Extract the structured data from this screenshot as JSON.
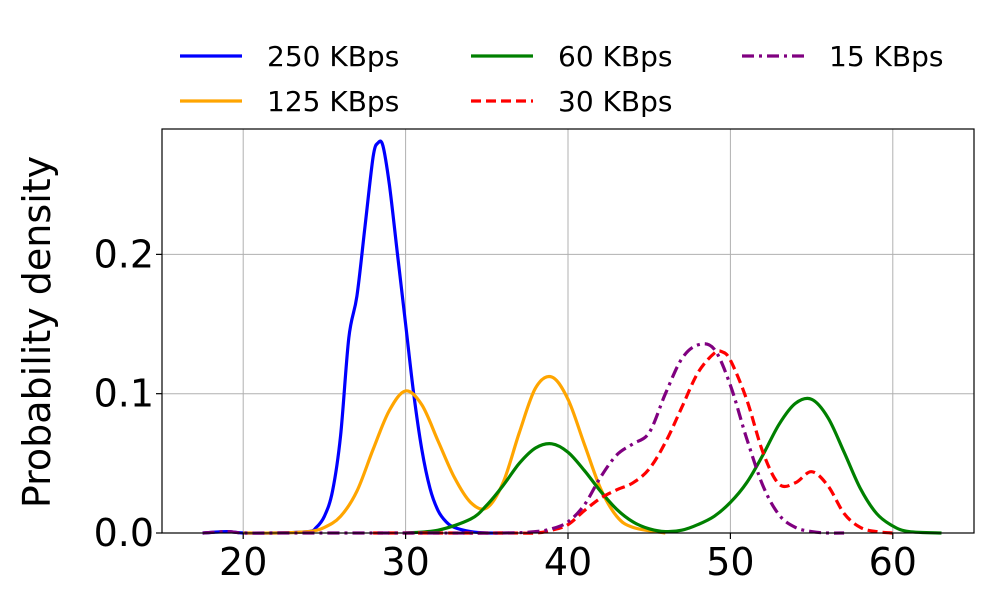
{
  "chart_data": {
    "type": "line",
    "xlabel": "",
    "ylabel": "Probability density",
    "xlim": [
      15,
      65
    ],
    "ylim": [
      0,
      0.29
    ],
    "xticks": [
      20,
      30,
      40,
      50,
      60
    ],
    "yticks": [
      0.0,
      0.1,
      0.2
    ],
    "ytick_labels": [
      "0.0",
      "0.1",
      "0.2"
    ],
    "grid": true,
    "legend_placement": "top, outside plot, 3 columns",
    "series": [
      {
        "name": "250 KBps",
        "color": "#0000ff",
        "dash": "solid",
        "x": [
          17.5,
          19,
          20,
          22,
          24,
          24.5,
          25,
          25.5,
          26,
          26.5,
          27,
          27.5,
          28,
          28.3,
          28.6,
          29,
          29.5,
          30,
          30.5,
          31,
          31.5,
          32,
          32.5,
          33,
          34,
          35,
          36
        ],
        "y": [
          0.0,
          0.001,
          0.0,
          0.0,
          0.001,
          0.004,
          0.012,
          0.03,
          0.07,
          0.14,
          0.17,
          0.22,
          0.27,
          0.28,
          0.278,
          0.25,
          0.2,
          0.15,
          0.1,
          0.06,
          0.032,
          0.016,
          0.008,
          0.004,
          0.001,
          0.0,
          0.0
        ]
      },
      {
        "name": "125 KBps",
        "color": "#ffa500",
        "dash": "solid",
        "x": [
          20,
          22,
          24,
          25,
          26,
          27,
          28,
          29,
          30,
          31,
          32,
          33,
          34,
          35,
          36,
          37,
          38,
          39,
          40,
          41,
          42,
          43,
          44,
          46
        ],
        "y": [
          0.0,
          0.0,
          0.001,
          0.004,
          0.012,
          0.03,
          0.06,
          0.088,
          0.102,
          0.092,
          0.066,
          0.04,
          0.022,
          0.018,
          0.036,
          0.072,
          0.104,
          0.112,
          0.096,
          0.064,
          0.032,
          0.012,
          0.004,
          0.0
        ]
      },
      {
        "name": "60 KBps",
        "color": "#008000",
        "dash": "solid",
        "x": [
          30,
          32,
          34,
          35,
          36,
          37,
          38,
          39,
          40,
          41,
          42,
          43,
          44,
          45,
          46,
          47,
          48,
          49,
          50,
          51,
          52,
          53,
          54,
          55,
          56,
          57,
          58,
          59,
          60,
          61,
          63
        ],
        "y": [
          0.0,
          0.002,
          0.01,
          0.02,
          0.034,
          0.05,
          0.061,
          0.064,
          0.058,
          0.045,
          0.03,
          0.017,
          0.008,
          0.003,
          0.001,
          0.002,
          0.006,
          0.012,
          0.022,
          0.036,
          0.056,
          0.078,
          0.093,
          0.096,
          0.083,
          0.058,
          0.032,
          0.014,
          0.005,
          0.001,
          0.0
        ]
      },
      {
        "name": "30 KBps",
        "color": "#ff0000",
        "dash": "dashed",
        "x": [
          28,
          36,
          38,
          39,
          40,
          41,
          42,
          43,
          44,
          45,
          46,
          47,
          48,
          49,
          49.5,
          50,
          51,
          52,
          53,
          54,
          55,
          56,
          57,
          58,
          59,
          60
        ],
        "y": [
          0.0,
          0.0,
          0.0,
          0.002,
          0.006,
          0.016,
          0.025,
          0.031,
          0.036,
          0.046,
          0.065,
          0.09,
          0.115,
          0.129,
          0.13,
          0.124,
          0.096,
          0.058,
          0.035,
          0.036,
          0.044,
          0.034,
          0.014,
          0.004,
          0.001,
          0.0
        ]
      },
      {
        "name": "15 KBps",
        "color": "#800080",
        "dash": "dashdot",
        "x": [
          17.5,
          19,
          20,
          22,
          30,
          36,
          38,
          39,
          40,
          41,
          42,
          43,
          44,
          45,
          46,
          47,
          48,
          49,
          50,
          51,
          52,
          53,
          54,
          55,
          56,
          57
        ],
        "y": [
          0.0,
          0.001,
          0.0,
          0.0,
          0.0,
          0.0,
          0.001,
          0.003,
          0.008,
          0.02,
          0.04,
          0.056,
          0.064,
          0.072,
          0.1,
          0.125,
          0.135,
          0.132,
          0.106,
          0.068,
          0.034,
          0.013,
          0.004,
          0.001,
          0.0,
          0.0
        ]
      }
    ]
  }
}
